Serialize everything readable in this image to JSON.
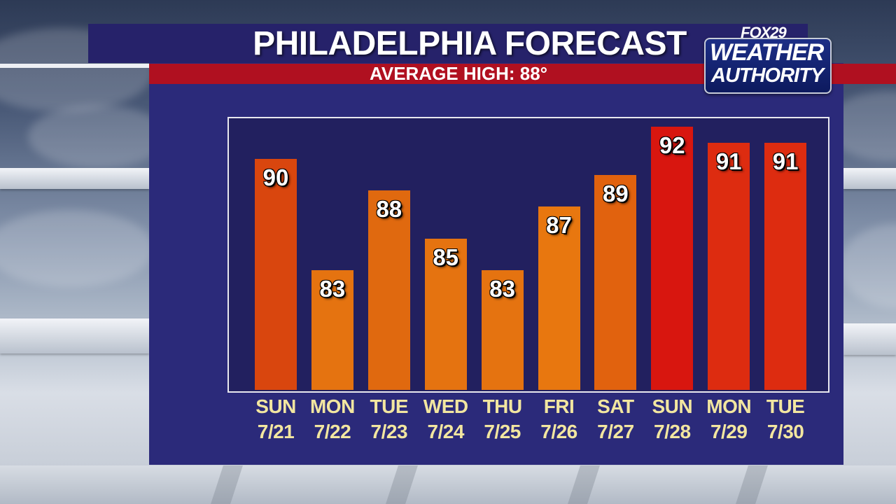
{
  "header": {
    "title": "PHILADELPHIA FORECAST",
    "subtitle": "AVERAGE HIGH:  88°"
  },
  "logo": {
    "brand": "FOX29",
    "line1": "WEATHER",
    "line2": "AUTHORITY"
  },
  "colors": {
    "panel": "#2b2a7a",
    "title_bar": "#26226a",
    "subtitle_bar": "#b01020",
    "day_label": "#f2e6a0",
    "bar_low": "#e27a12",
    "bar_high": "#d8160f"
  },
  "chart_data": {
    "type": "bar",
    "title": "PHILADELPHIA FORECAST",
    "subtitle": "AVERAGE HIGH:  88°",
    "days": [
      "SUN",
      "MON",
      "TUE",
      "WED",
      "THU",
      "FRI",
      "SAT",
      "SUN",
      "MON",
      "TUE"
    ],
    "dates": [
      "7/21",
      "7/22",
      "7/23",
      "7/24",
      "7/25",
      "7/26",
      "7/27",
      "7/28",
      "7/29",
      "7/30"
    ],
    "values": [
      90,
      83,
      88,
      85,
      83,
      87,
      89,
      92,
      91,
      91
    ],
    "bar_colors": [
      "#d9460e",
      "#e57310",
      "#e0690f",
      "#e57310",
      "#e57310",
      "#e8770f",
      "#e1620e",
      "#d8160f",
      "#dd2c10",
      "#dd2c10"
    ],
    "ylim": [
      75.5,
      92.5
    ],
    "grid": false,
    "legend": "none"
  }
}
